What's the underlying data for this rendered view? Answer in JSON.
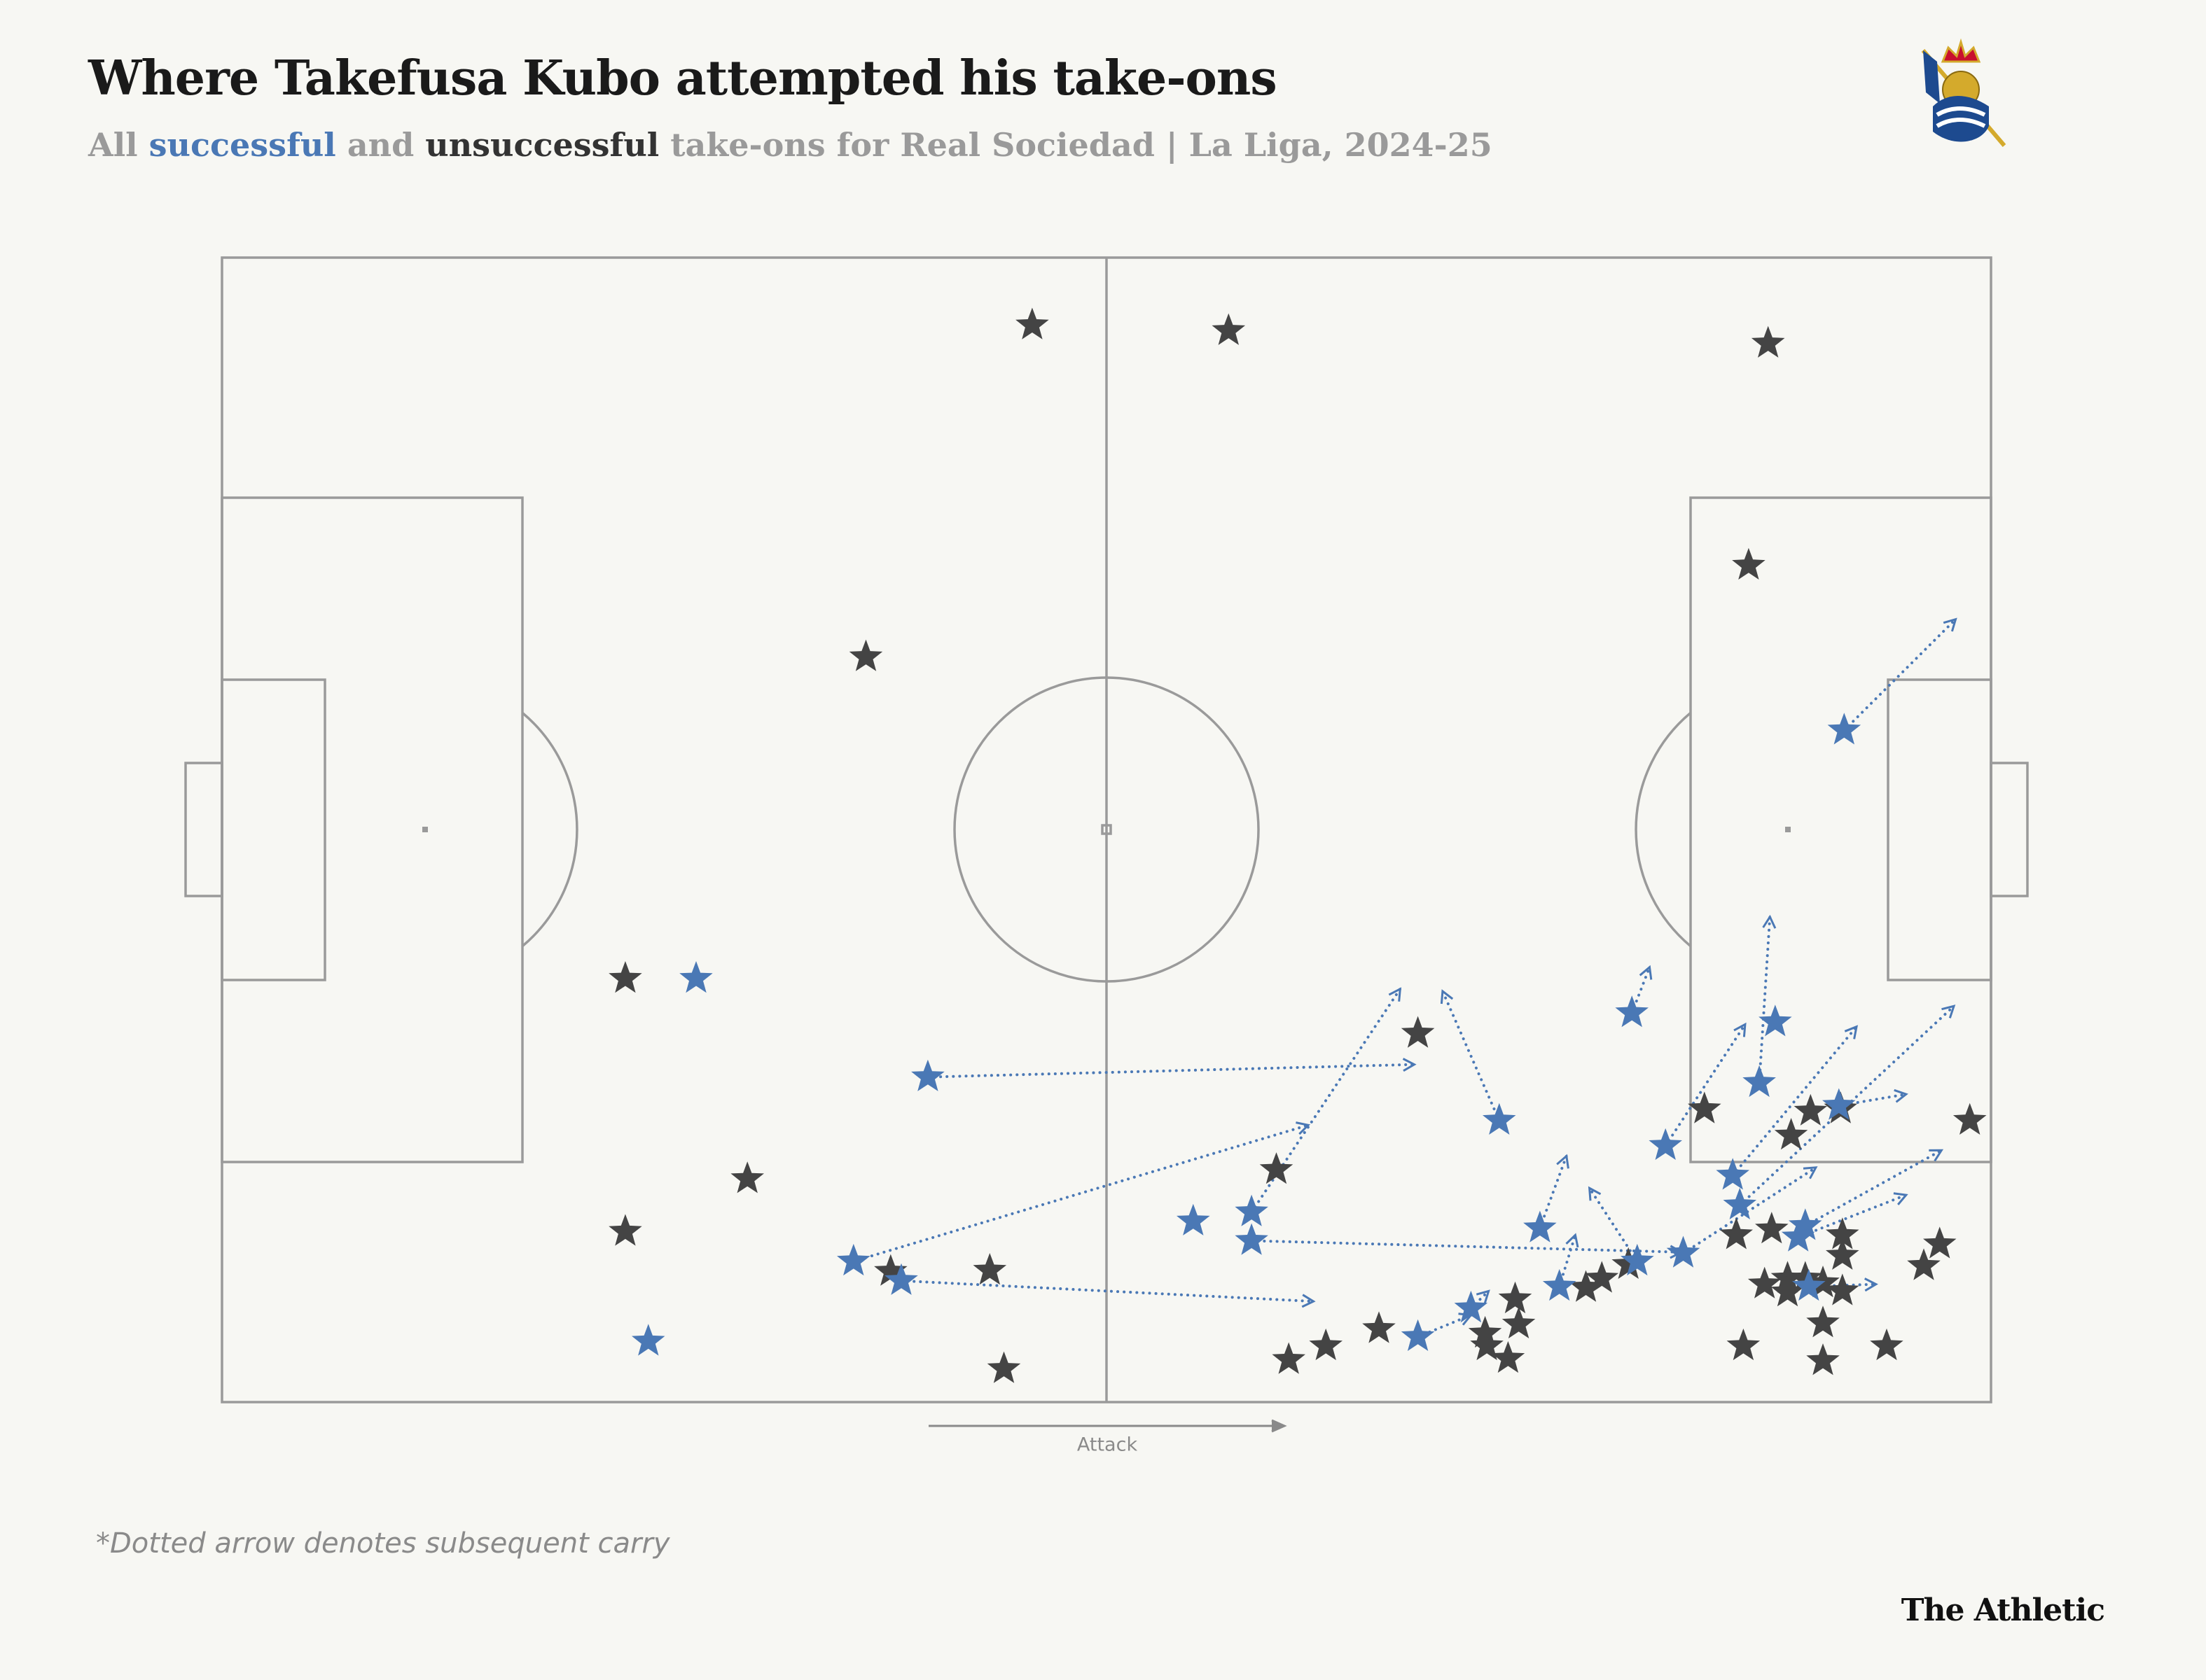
{
  "chart_data": {
    "type": "scatter",
    "title": "Where Takefusa Kubo attempted his take-ons",
    "subtitle_parts": [
      "All",
      "and",
      "take-ons for Real Sociedad | La Liga, 2024-25"
    ],
    "direction_label": "Attack",
    "footnote": "*Dotted arrow denotes subsequent carry",
    "source": "The Athletic",
    "xlim": [
      0,
      100
    ],
    "ylim": [
      0,
      100
    ],
    "series": [
      {
        "name": "successful",
        "color": "#4a78b5",
        "x": [
          26.8,
          24.1,
          39.9,
          35.7,
          38.4,
          54.9,
          58.2,
          58.2,
          72.2,
          79.7,
          91.7,
          87.8,
          86.9,
          81.6,
          85.4,
          85.8,
          91.4,
          89.5,
          89.1,
          89.7,
          82.6,
          80.0,
          74.5,
          75.6,
          70.6,
          67.6
        ],
        "y": [
          37.0,
          5.3,
          28.4,
          12.3,
          10.6,
          15.8,
          16.6,
          14.1,
          24.6,
          34.0,
          58.7,
          33.2,
          27.9,
          22.4,
          19.8,
          17.2,
          25.9,
          15.4,
          14.4,
          10.1,
          13.0,
          12.3,
          15.2,
          10.1,
          8.2,
          5.7
        ],
        "end_x": [
          null,
          null,
          67.4,
          61.4,
          61.7,
          null,
          66.6,
          82.5,
          69.0,
          80.7,
          98.0,
          null,
          87.5,
          86.1,
          92.4,
          97.9,
          95.2,
          97.2,
          95.2,
          93.5,
          90.1,
          77.3,
          76.0,
          76.5,
          71.6,
          70.6
        ],
        "end_y": [
          null,
          null,
          29.5,
          24.2,
          8.8,
          null,
          36.1,
          13.1,
          35.9,
          38.0,
          68.4,
          null,
          42.4,
          33.0,
          32.8,
          34.6,
          26.9,
          22.0,
          18.1,
          10.3,
          20.5,
          18.7,
          21.5,
          14.6,
          9.7,
          7.6
        ]
      },
      {
        "name": "unsuccessful",
        "color": "#444444",
        "x": [
          45.8,
          56.9,
          87.4,
          86.3,
          36.4,
          22.8,
          67.6,
          29.7,
          22.8,
          59.6,
          37.8,
          43.4,
          44.2,
          60.3,
          62.4,
          65.4,
          71.4,
          71.5,
          72.7,
          73.3,
          73.1,
          77.1,
          78.0,
          79.5,
          83.8,
          88.7,
          89.8,
          91.5,
          85.6,
          87.6,
          91.6,
          91.6,
          87.2,
          88.5,
          88.5,
          89.5,
          90.5,
          91.6,
          90.5,
          86.0,
          90.5,
          94.1,
          96.2,
          97.1,
          98.8
        ],
        "y": [
          94.1,
          93.6,
          92.5,
          73.1,
          65.1,
          37.0,
          32.2,
          19.5,
          14.9,
          20.3,
          11.4,
          11.5,
          2.9,
          3.7,
          4.9,
          6.4,
          6.0,
          4.9,
          3.8,
          6.8,
          9.0,
          10.0,
          10.8,
          12.0,
          25.6,
          23.3,
          25.4,
          25.6,
          14.6,
          15.1,
          14.6,
          12.8,
          10.3,
          10.8,
          9.6,
          10.8,
          10.4,
          9.7,
          6.9,
          4.9,
          3.6,
          4.9,
          11.9,
          13.8,
          24.6
        ]
      }
    ]
  }
}
